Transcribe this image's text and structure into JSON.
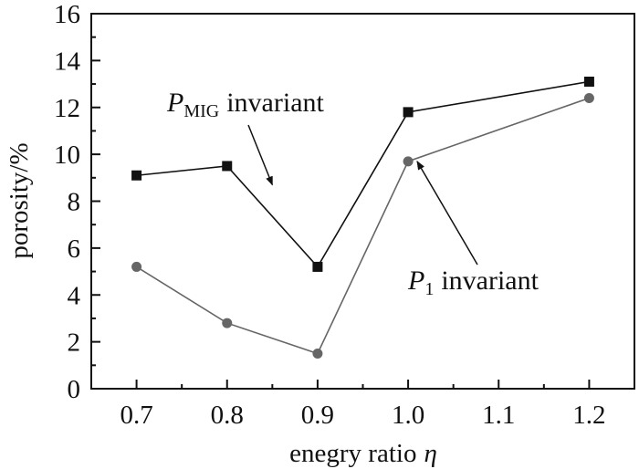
{
  "chart_data": {
    "type": "line",
    "title": "",
    "xlabel": "enegry ratio",
    "xlabel_symbol": "η",
    "ylabel": "porosity/%",
    "xlim": [
      0.65,
      1.25
    ],
    "ylim": [
      0,
      16
    ],
    "xticks": [
      0.7,
      0.8,
      0.9,
      1.0,
      1.1,
      1.2
    ],
    "xtick_labels": [
      "0.7",
      "0.8",
      "0.9",
      "1.0",
      "1.1",
      "1.2"
    ],
    "yticks": [
      0,
      2,
      4,
      6,
      8,
      10,
      12,
      14,
      16
    ],
    "ytick_labels": [
      "0",
      "2",
      "4",
      "6",
      "8",
      "10",
      "12",
      "14",
      "16"
    ],
    "grid": false,
    "series": [
      {
        "name": "P_MIG invariant",
        "marker": "square",
        "color": "#111111",
        "x": [
          0.7,
          0.8,
          0.9,
          1.0,
          1.2
        ],
        "values": [
          9.1,
          9.5,
          5.2,
          11.8,
          13.1
        ]
      },
      {
        "name": "P_1 invariant",
        "marker": "circle",
        "color": "#666666",
        "x": [
          0.7,
          0.8,
          0.9,
          1.0,
          1.2
        ],
        "values": [
          5.2,
          2.8,
          1.5,
          9.7,
          12.4
        ]
      }
    ],
    "annotations": [
      {
        "series_index": 0,
        "symbol": "P",
        "subscript": "MIG",
        "text": "invariant",
        "arrow_target": [
          0.85,
          8.7
        ]
      },
      {
        "series_index": 1,
        "symbol": "P",
        "subscript": "1",
        "text": "invariant",
        "arrow_target": [
          1.01,
          9.7
        ]
      }
    ]
  }
}
